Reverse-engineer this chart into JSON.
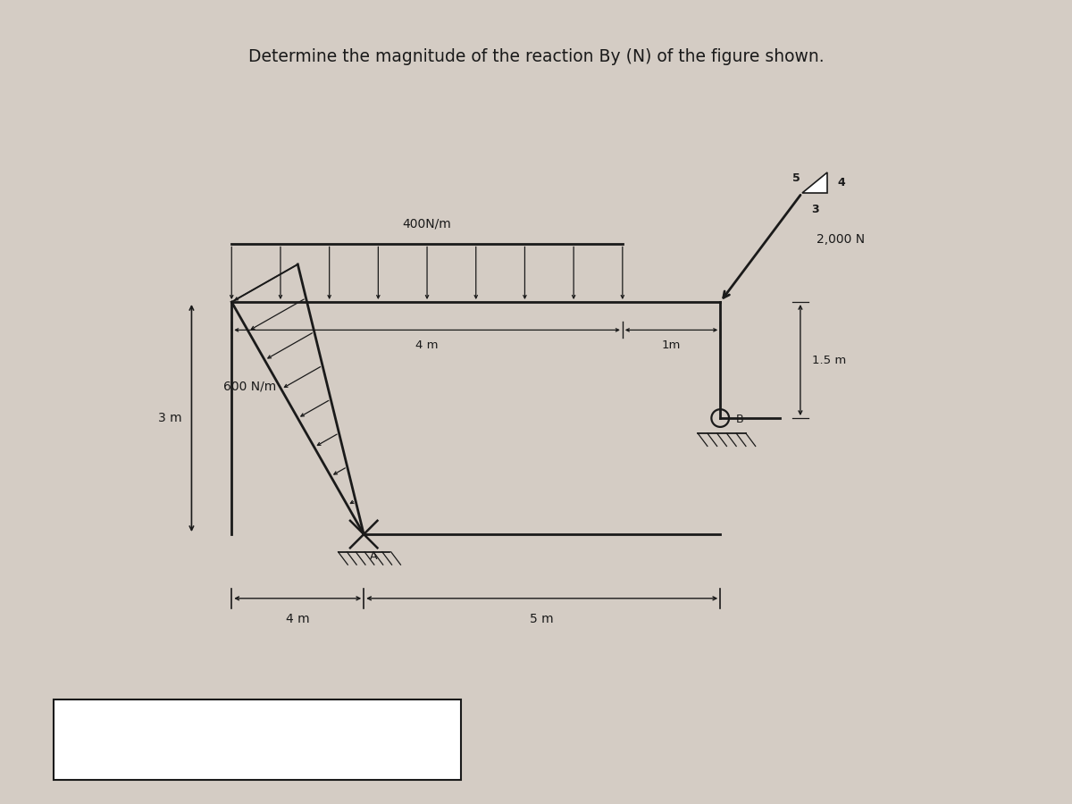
{
  "title": "Determine the magnitude of the reaction By (N) of the figure shown.",
  "title_fontsize": 13.5,
  "bg_color": "#d4ccc4",
  "panel_color": "#ddd5cc",
  "line_color": "#1a1a1a",
  "label_3m": "3 m",
  "label_4m_bottom": "4 m",
  "label_5m": "5 m",
  "label_4m_horiz": "4 m",
  "label_1m": "1m",
  "label_1p5m": "1.5 m",
  "label_600": "600 N/m",
  "label_400": "400N/m",
  "label_2000": "2,000 N",
  "label_A": "A",
  "label_B": "B",
  "label_3": "3",
  "label_4": "4",
  "label_5": "5",
  "figsize": [
    12.0,
    9.0
  ],
  "dpi": 100
}
